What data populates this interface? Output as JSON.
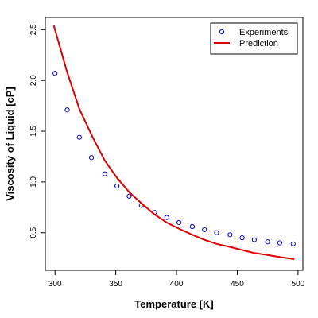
{
  "chart_data": {
    "type": "line",
    "title": "",
    "xlabel": "Temperature [K]",
    "ylabel": "Viscosity of Liquid [cP]",
    "xlim": [
      292,
      504
    ],
    "ylim": [
      0.13,
      2.62
    ],
    "xticks": [
      300,
      350,
      400,
      450,
      500
    ],
    "yticks": [
      0.5,
      1.0,
      1.5,
      2.0,
      2.5
    ],
    "xtick_labels": [
      "300",
      "350",
      "400",
      "450",
      "500"
    ],
    "ytick_labels": [
      "0.5",
      "1.0",
      "1.5",
      "2.0",
      "2.5"
    ],
    "grid": false,
    "legend": "top-right",
    "series": [
      {
        "name": "Experiments",
        "style": "points",
        "color": "#0000cc",
        "x": [
          300,
          310,
          320,
          330,
          341,
          351,
          361,
          371,
          382,
          392,
          402,
          413,
          423,
          433,
          444,
          454,
          464,
          475,
          485,
          496
        ],
        "y": [
          2.07,
          1.71,
          1.44,
          1.24,
          1.08,
          0.96,
          0.86,
          0.77,
          0.7,
          0.65,
          0.6,
          0.56,
          0.53,
          0.5,
          0.48,
          0.45,
          0.43,
          0.41,
          0.4,
          0.39
        ]
      },
      {
        "name": "Prediction",
        "style": "line",
        "color": "#dd0000",
        "x": [
          299,
          310,
          320,
          331,
          341,
          351,
          361,
          372,
          382,
          392,
          402,
          413,
          423,
          433,
          444,
          454,
          464,
          475,
          485,
          497
        ],
        "y": [
          2.54,
          2.08,
          1.72,
          1.44,
          1.21,
          1.04,
          0.9,
          0.78,
          0.68,
          0.6,
          0.54,
          0.48,
          0.43,
          0.39,
          0.36,
          0.33,
          0.3,
          0.28,
          0.26,
          0.24
        ]
      }
    ]
  }
}
